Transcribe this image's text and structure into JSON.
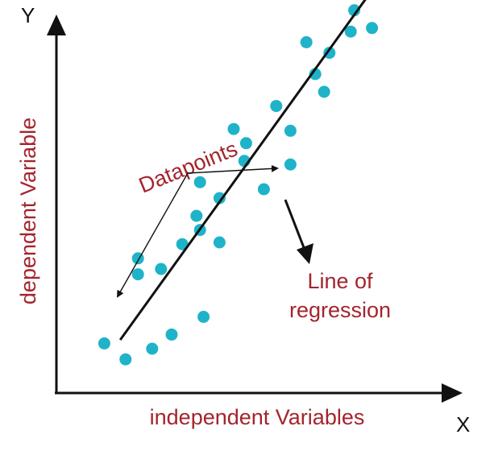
{
  "labels": {
    "y_axis_letter": "Y",
    "x_axis_letter": "X",
    "y_axis_label": "dependent Variable",
    "x_axis_label": "independent Variables",
    "datapoints_label": "Datapoints",
    "regression_label_line1": "Line of",
    "regression_label_line2": "regression"
  },
  "colors": {
    "point": "#1fb3c9",
    "axis": "#111111",
    "label": "#a4242d"
  },
  "points": [
    {
      "x": 1.35,
      "y": 1.4
    },
    {
      "x": 1.95,
      "y": 0.95
    },
    {
      "x": 2.3,
      "y": 3.8
    },
    {
      "x": 2.3,
      "y": 3.35
    },
    {
      "x": 2.7,
      "y": 1.25
    },
    {
      "x": 2.95,
      "y": 3.5
    },
    {
      "x": 3.25,
      "y": 1.65
    },
    {
      "x": 3.55,
      "y": 4.2
    },
    {
      "x": 3.95,
      "y": 5.0
    },
    {
      "x": 4.05,
      "y": 4.6
    },
    {
      "x": 4.05,
      "y": 5.95
    },
    {
      "x": 4.15,
      "y": 2.15
    },
    {
      "x": 4.6,
      "y": 5.5
    },
    {
      "x": 4.6,
      "y": 4.25
    },
    {
      "x": 5.0,
      "y": 7.45
    },
    {
      "x": 5.3,
      "y": 6.55
    },
    {
      "x": 5.35,
      "y": 7.05
    },
    {
      "x": 5.85,
      "y": 5.75
    },
    {
      "x": 6.2,
      "y": 8.1
    },
    {
      "x": 6.6,
      "y": 7.4
    },
    {
      "x": 6.6,
      "y": 6.45
    },
    {
      "x": 7.05,
      "y": 9.9
    },
    {
      "x": 7.3,
      "y": 9.0
    },
    {
      "x": 7.55,
      "y": 8.5
    },
    {
      "x": 7.7,
      "y": 9.6
    },
    {
      "x": 8.3,
      "y": 10.2
    },
    {
      "x": 8.4,
      "y": 10.8
    },
    {
      "x": 8.9,
      "y": 10.3
    },
    {
      "x": 9.05,
      "y": 11.5
    },
    {
      "x": 9.5,
      "y": 11.6
    }
  ],
  "regression": {
    "x1": 1.8,
    "y1": 1.5,
    "x2": 9.5,
    "y2": 12.2
  }
}
